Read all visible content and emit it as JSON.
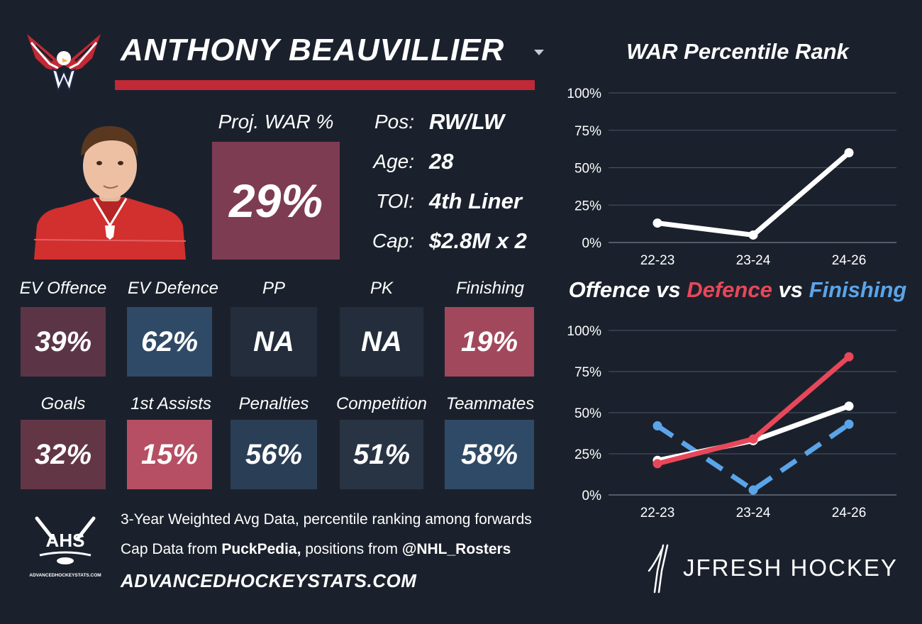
{
  "header": {
    "player_name": "ANTHONY BEAUVILLIER",
    "team_logo": "capitals-eagle-logo",
    "headshot": "player-headshot-red-jersey"
  },
  "projection": {
    "label": "Proj. WAR %",
    "value": "29%"
  },
  "info": [
    {
      "label": "Pos:",
      "value": "RW/LW"
    },
    {
      "label": "Age:",
      "value": "28"
    },
    {
      "label": "TOI:",
      "value": "4th Liner"
    },
    {
      "label": "Cap:",
      "value": "$2.8M x 2"
    }
  ],
  "tiles": [
    {
      "label": "EV Offence",
      "value": "39%",
      "color": "#5b3546"
    },
    {
      "label": "EV Defence",
      "value": "62%",
      "color": "#2f4a66"
    },
    {
      "label": "PP",
      "value": "NA",
      "color": "#232d3b"
    },
    {
      "label": "PK",
      "value": "NA",
      "color": "#232d3b"
    },
    {
      "label": "Finishing",
      "value": "19%",
      "color": "#a2485c"
    },
    {
      "label": "Goals",
      "value": "32%",
      "color": "#633646"
    },
    {
      "label": "1st Assists",
      "value": "15%",
      "color": "#b64f63"
    },
    {
      "label": "Penalties",
      "value": "56%",
      "color": "#2a3e56"
    },
    {
      "label": "Competition",
      "value": "51%",
      "color": "#283444"
    },
    {
      "label": "Teammates",
      "value": "58%",
      "color": "#2f4a66"
    }
  ],
  "footer": {
    "line1": "3-Year Weighted Avg Data, percentile ranking among forwards",
    "line2_prefix": "Cap Data from ",
    "line2_source": "PuckPedia,",
    "line2_middle": " positions from ",
    "line2_handle": "@NHL_Rosters",
    "url": "ADVANCEDHOCKEYSTATS.COM",
    "ahs_logo_text": "AHS",
    "ahs_logo_subtext": "ADVANCEDHOCKEYSTATS.COM",
    "jfresh_logo_text": "JFRESH HOCKEY"
  },
  "colors": {
    "background": "#1b212c",
    "accent_red": "#c22936",
    "white_line": "#ffffff",
    "defence_red": "#e8475a",
    "finishing_blue": "#5aa5ea"
  },
  "chart_data": [
    {
      "type": "line",
      "title": "WAR Percentile Rank",
      "categories": [
        "22-23",
        "23-24",
        "24-26"
      ],
      "yticks": [
        "0%",
        "25%",
        "50%",
        "75%",
        "100%"
      ],
      "ylim": [
        0,
        100
      ],
      "grid": true,
      "series": [
        {
          "values": [
            13,
            5,
            60
          ],
          "color": "#ffffff",
          "dash": false
        }
      ]
    },
    {
      "type": "line",
      "title": "Offence vs Defence vs Finishing",
      "title_parts": [
        {
          "text": "Offence",
          "color": "#ffffff"
        },
        {
          "text": " vs ",
          "color": "#ffffff"
        },
        {
          "text": "Defence",
          "color": "#e8475a"
        },
        {
          "text": " vs ",
          "color": "#ffffff"
        },
        {
          "text": "Finishing",
          "color": "#5aa5ea"
        }
      ],
      "categories": [
        "22-23",
        "23-24",
        "24-26"
      ],
      "yticks": [
        "0%",
        "25%",
        "50%",
        "75%",
        "100%"
      ],
      "ylim": [
        0,
        100
      ],
      "grid": true,
      "series": [
        {
          "name": "Finishing",
          "values": [
            42,
            3,
            43
          ],
          "color": "#5aa5ea",
          "dash": true
        },
        {
          "name": "Offence",
          "values": [
            21,
            33,
            54
          ],
          "color": "#ffffff",
          "dash": false
        },
        {
          "name": "Defence",
          "values": [
            19,
            34,
            84
          ],
          "color": "#e8475a",
          "dash": false
        }
      ]
    }
  ]
}
